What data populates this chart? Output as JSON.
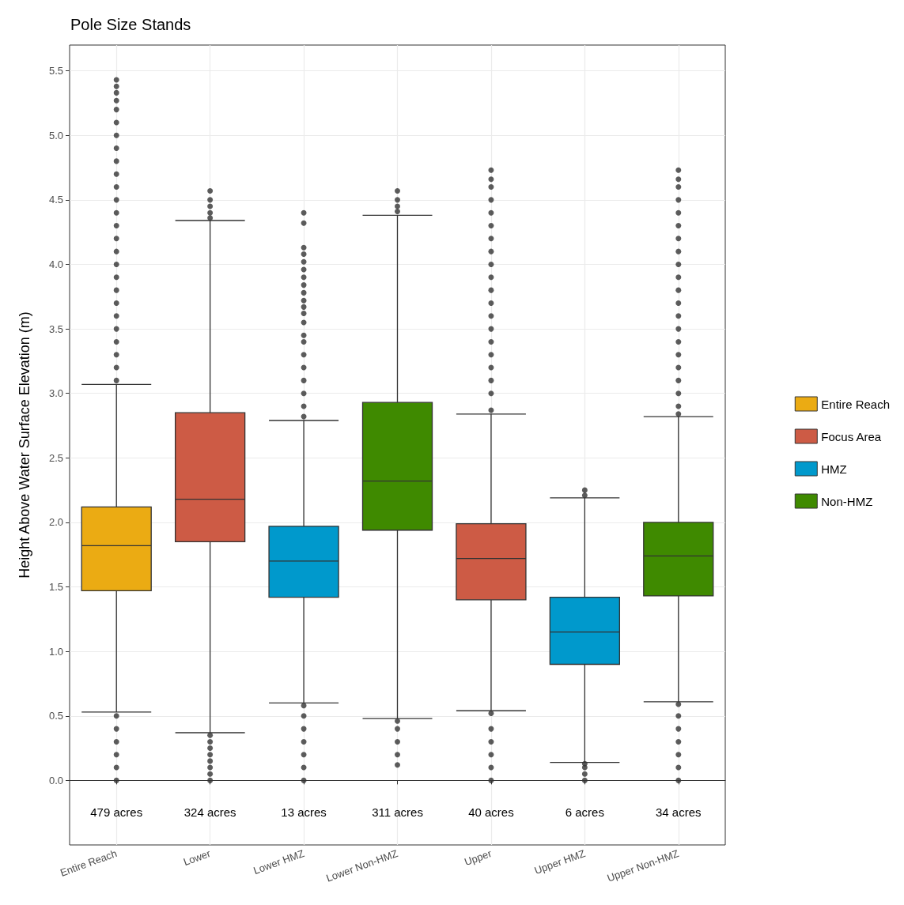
{
  "chart_data": {
    "type": "box",
    "title": "Pole Size Stands",
    "ylabel": "Height Above Water Surface Elevation (m)",
    "categories": [
      "Entire Reach",
      "Lower",
      "Lower HMZ",
      "Lower Non-HMZ",
      "Upper",
      "Upper HMZ",
      "Upper Non-HMZ"
    ],
    "ylim": [
      -0.5,
      5.7
    ],
    "yticks": [
      {
        "value": 0,
        "label": "0.0"
      },
      0.5,
      {
        "value": 1,
        "label": "1.0"
      },
      1.5,
      {
        "value": 2,
        "label": "2.0"
      },
      2.5,
      {
        "value": 3,
        "label": "3.0"
      },
      3.5,
      {
        "value": 4,
        "label": "4.0"
      },
      4.5,
      {
        "value": 5,
        "label": "5.0"
      },
      5.5
    ],
    "grid": true,
    "legend": "right",
    "series": [
      {
        "name": "Entire Reach",
        "color": "#ebab13",
        "boxes": [
          {
            "low": 0.53,
            "q1": 1.47,
            "median": 1.82,
            "q3": 2.12,
            "high": 3.07,
            "outliers": [
              0,
              0.1,
              0.2,
              0.3,
              0.4,
              0.5,
              3.1,
              3.2,
              3.3,
              3.4,
              3.5,
              3.6,
              3.7,
              3.8,
              3.9,
              4.0,
              4.1,
              4.2,
              4.3,
              4.4,
              4.5,
              4.6,
              4.7,
              4.8,
              4.9,
              5.0,
              5.1,
              5.2,
              5.27,
              5.33,
              5.38,
              5.43
            ]
          },
          null,
          null,
          null,
          null,
          null,
          null
        ]
      },
      {
        "name": "Focus Area",
        "color": "#cd5b45",
        "boxes": [
          null,
          {
            "low": 0.37,
            "q1": 1.85,
            "median": 2.18,
            "q3": 2.85,
            "high": 4.34,
            "outliers": [
              0,
              0.05,
              0.1,
              0.15,
              0.2,
              0.25,
              0.3,
              0.35,
              4.36,
              4.4,
              4.45,
              4.5,
              4.57
            ]
          },
          null,
          null,
          {
            "low": 0.54,
            "q1": 1.4,
            "median": 1.72,
            "q3": 1.99,
            "high": 2.84,
            "outliers": [
              0,
              0.1,
              0.2,
              0.3,
              0.4,
              0.52,
              2.87,
              3.0,
              3.1,
              3.2,
              3.3,
              3.4,
              3.5,
              3.6,
              3.7,
              3.8,
              3.9,
              4.0,
              4.1,
              4.2,
              4.3,
              4.4,
              4.5,
              4.6,
              4.66,
              4.73
            ]
          },
          null,
          null
        ]
      },
      {
        "name": "HMZ",
        "color": "#0099cc",
        "boxes": [
          null,
          null,
          {
            "low": 0.6,
            "q1": 1.42,
            "median": 1.7,
            "q3": 1.97,
            "high": 2.79,
            "outliers": [
              0,
              0.1,
              0.2,
              0.3,
              0.4,
              0.5,
              0.58,
              2.82,
              2.9,
              3.0,
              3.1,
              3.2,
              3.3,
              3.4,
              3.45,
              3.55,
              3.62,
              3.67,
              3.72,
              3.78,
              3.84,
              3.9,
              3.96,
              4.02,
              4.08,
              4.13,
              4.32,
              4.4
            ]
          },
          null,
          null,
          {
            "low": 0.14,
            "q1": 0.9,
            "median": 1.15,
            "q3": 1.42,
            "high": 2.19,
            "outliers": [
              0,
              0.05,
              0.1,
              0.13,
              2.21,
              2.25
            ]
          },
          null
        ]
      },
      {
        "name": "Non-HMZ",
        "color": "#3f8a00",
        "boxes": [
          null,
          null,
          null,
          {
            "low": 0.48,
            "q1": 1.94,
            "median": 2.32,
            "q3": 2.93,
            "high": 4.38,
            "outliers": [
              0.12,
              0.2,
              0.3,
              0.4,
              0.46,
              4.41,
              4.45,
              4.5,
              4.57
            ]
          },
          null,
          null,
          {
            "low": 0.61,
            "q1": 1.43,
            "median": 1.74,
            "q3": 2.0,
            "high": 2.82,
            "outliers": [
              0,
              0.1,
              0.2,
              0.3,
              0.4,
              0.5,
              0.59,
              2.84,
              2.9,
              3.0,
              3.1,
              3.2,
              3.3,
              3.4,
              3.5,
              3.6,
              3.7,
              3.8,
              3.9,
              4.0,
              4.1,
              4.2,
              4.3,
              4.4,
              4.5,
              4.6,
              4.66,
              4.73
            ]
          }
        ]
      }
    ],
    "annotations": [
      "479 acres",
      "324 acres",
      "13 acres",
      "311 acres",
      "40 acres",
      "6 acres",
      "34 acres"
    ]
  }
}
